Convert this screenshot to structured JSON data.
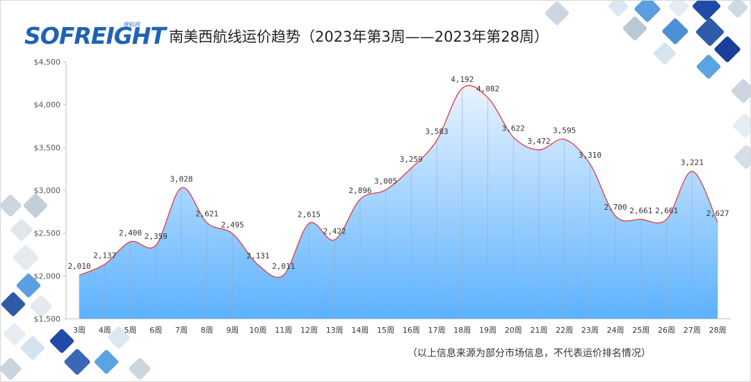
{
  "header": {
    "logo_text": "SOFREIGHT",
    "logo_sub": "搜航网",
    "title": "南美西航线运价趋势（2023年第3周——2023年第28周）"
  },
  "footer": {
    "note": "（以上信息来源为部分市场信息，不代表运价排名情况）"
  },
  "colors": {
    "line": "#e23a3a",
    "fill_top": "#e9f3ff",
    "fill_bottom": "#5cb2ff",
    "brand": "#1e63b6"
  },
  "chart_data": {
    "type": "area",
    "title": "南美西航线运价趋势（2023年第3周——2023年第28周）",
    "categories": [
      "3周",
      "4周",
      "5周",
      "6周",
      "7周",
      "8周",
      "9周",
      "10周",
      "11周",
      "12周",
      "13周",
      "14周",
      "15周",
      "16周",
      "17周",
      "18周",
      "19周",
      "20周",
      "21周",
      "22周",
      "23周",
      "24周",
      "25周",
      "26周",
      "27周",
      "28周"
    ],
    "values": [
      2010,
      2137,
      2400,
      2359,
      3028,
      2621,
      2495,
      2131,
      2011,
      2615,
      2422,
      2896,
      3005,
      3259,
      3583,
      4192,
      4082,
      3622,
      3472,
      3595,
      3310,
      2700,
      2661,
      2661,
      3221,
      2627
    ],
    "data_labels": [
      "2,010",
      "2,137",
      "2,400",
      "2,359",
      "3,028",
      "2,621",
      "2,495",
      "2,131",
      "2,011",
      "2,615",
      "2,422",
      "2,896",
      "3,005",
      "3,259",
      "3,583",
      "4,192",
      "4,082",
      "3,622",
      "3,472",
      "3,595",
      "3,310",
      "2,700",
      "2,661",
      "2,661",
      "3,221",
      "2,627"
    ],
    "ylim": [
      1500,
      4500
    ],
    "yticks": [
      1500,
      2000,
      2500,
      3000,
      3500,
      4000,
      4500
    ],
    "ytick_labels": [
      "$1,500",
      "$2,000",
      "$2,500",
      "$3,000",
      "$3,500",
      "$4,000",
      "$4,500"
    ],
    "xlabel": "",
    "ylabel": "",
    "grid": false,
    "legend": "none"
  }
}
